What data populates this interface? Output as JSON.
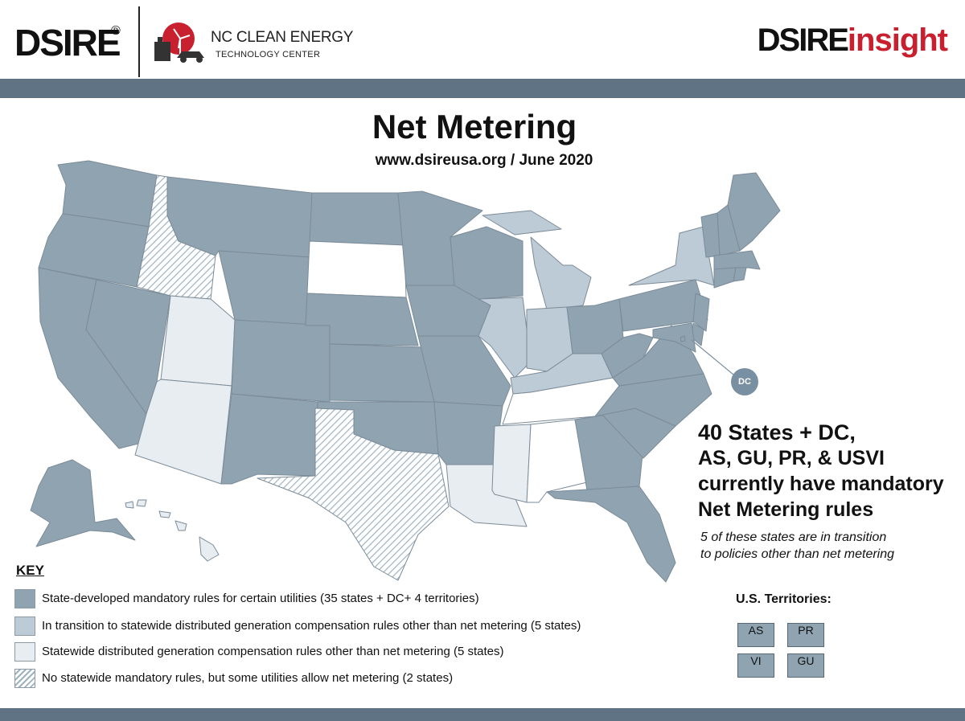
{
  "header": {
    "dsire_logo": "DSIRE",
    "dsire_registered": "®",
    "ncce_line1": "NC CLEAN ENERGY",
    "ncce_line2": "TECHNOLOGY CENTER",
    "insight_logo_a": "DSIRE",
    "insight_logo_b": "insight"
  },
  "title": "Net Metering",
  "subtitle": "www.dsireusa.org / June 2020",
  "dc_label": "DC",
  "summary": {
    "line1": "40 States + DC,",
    "line2": "AS, GU, PR, & USVI",
    "line3": "currently have mandatory",
    "line4": "Net Metering rules"
  },
  "note": {
    "line1": "5 of these states are in transition",
    "line2": "to policies other than net metering"
  },
  "key": {
    "title": "KEY",
    "items": [
      {
        "label": "State-developed mandatory rules for certain utilities (35 states + DC+ 4 territories)",
        "color": "#8fa3b1"
      },
      {
        "label": "In transition to statewide distributed generation compensation rules other than net metering (5 states)",
        "color": "#bccbd6"
      },
      {
        "label": "Statewide distributed generation compensation rules other than net metering (5 states)",
        "color": "#e8edf1"
      },
      {
        "label": "No statewide mandatory rules, but some utilities allow net metering (2 states)",
        "color": "hatched"
      }
    ]
  },
  "territories": {
    "title": "U.S. Territories:",
    "items": [
      "AS",
      "PR",
      "VI",
      "GU"
    ]
  },
  "colors": {
    "mandatory": "#8fa3b1",
    "transition": "#bccbd6",
    "other_compensation": "#e8edf1",
    "no_statewide": "hatched",
    "none": "#ffffff",
    "bars": "#5f7384",
    "insight_red": "#c8202f"
  },
  "states": {
    "mandatory": [
      "WA",
      "OR",
      "CA",
      "NV",
      "MT",
      "WY",
      "CO",
      "NM",
      "ND",
      "NE",
      "KS",
      "OK",
      "MN",
      "IA",
      "MO",
      "AR",
      "WI",
      "OH",
      "PA",
      "WV",
      "VA",
      "NC",
      "SC",
      "GA",
      "FL",
      "NJ",
      "DE",
      "MD",
      "ME",
      "VT",
      "NH",
      "MA",
      "CT",
      "RI",
      "AK",
      "DC"
    ],
    "transition": [
      "MI",
      "IL",
      "IN",
      "KY",
      "NY"
    ],
    "other_compensation": [
      "UT",
      "AZ",
      "LA",
      "MS",
      "HI"
    ],
    "no_statewide": [
      "ID",
      "TX"
    ],
    "none": [
      "SD",
      "TN",
      "AL"
    ]
  }
}
